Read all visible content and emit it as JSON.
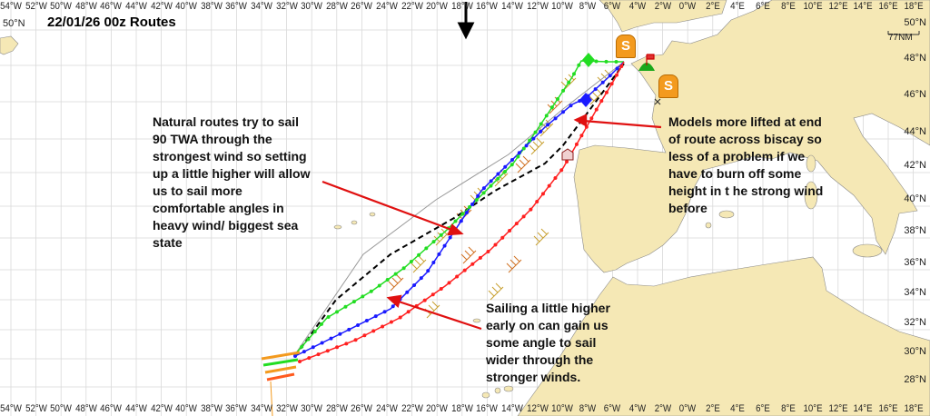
{
  "title": "22/01/26 00z Routes",
  "lon_labels": [
    "54°W",
    "52°W",
    "50°W",
    "48°W",
    "46°W",
    "44°W",
    "42°W",
    "40°W",
    "38°W",
    "36°W",
    "34°W",
    "32°W",
    "30°W",
    "28°W",
    "26°W",
    "24°W",
    "22°W",
    "20°W",
    "18°W",
    "16°W",
    "14°W",
    "12°W",
    "10°W",
    "8°W",
    "6°W",
    "4°W",
    "2°W",
    "0°W",
    "2°E",
    "4°E",
    "6°E",
    "8°E",
    "10°E",
    "12°E",
    "14°E",
    "16°E",
    "18°E"
  ],
  "lat_labels": [
    "50°N",
    "48°N",
    "46°N",
    "44°N",
    "42°N",
    "40°N",
    "38°N",
    "36°N",
    "34°N",
    "32°N",
    "30°N",
    "28°N"
  ],
  "left_lat_label": "50°N",
  "scale_label": "77NM",
  "annotations": {
    "natural_routes": "Natural routes try to sail\n90 TWA through the\nstrongest wind so setting\nup a little higher will allow\nus to sail more\ncomfortable angles in\nheavy wind/ biggest sea\nstate",
    "models_lifted": "Models more lifted at end\nof route across biscay so\nless of a problem if we\nhave to burn off some\nheight in t he strong wind\nbefore",
    "sailing_higher": "Sailing a little higher\nearly on can gain us\nsome angle to sail\nwider through the\nstronger winds."
  },
  "markers": {
    "waypoint_symbol": "S"
  },
  "colors": {
    "land": "#f5e8b5",
    "sea": "#ffffff",
    "grid": "#d9d9d9",
    "route_green": "#22dd22",
    "route_blue": "#1a1aff",
    "route_red": "#ff2020",
    "route_black": "#000000",
    "route_grey": "#999999",
    "annotation_arrow": "#e01010",
    "waypoint": "#f39a1e"
  }
}
